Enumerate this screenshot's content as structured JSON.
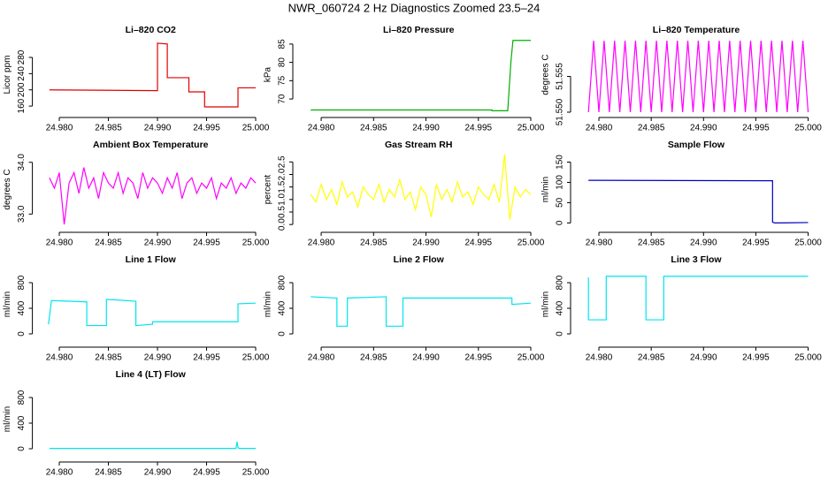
{
  "title": "NWR_060724  2 Hz Diagnostics Zoomed 23.5–24",
  "chart_data": [
    {
      "type": "line",
      "title": "Li–820 CO2",
      "ylabel": "Licor ppm",
      "color": "#e00000",
      "x": [
        24.979,
        24.99,
        24.99,
        24.991,
        24.991,
        24.9932,
        24.9932,
        24.9948,
        24.9948,
        24.9982,
        24.9982,
        25
      ],
      "values": [
        200,
        198,
        315,
        313,
        230,
        230,
        195,
        195,
        158,
        158,
        205,
        205
      ],
      "xlim": [
        24.9778,
        25.0008
      ],
      "xticks": [
        {
          "value": 24.98,
          "label": "24.980"
        },
        {
          "value": 24.985,
          "label": "24.985"
        },
        {
          "value": 24.99,
          "label": "24.990"
        },
        {
          "value": 24.995,
          "label": "24.995"
        },
        {
          "value": 25,
          "label": "25.000"
        }
      ],
      "ylim": [
        145,
        330
      ],
      "yticks": [
        160,
        200,
        240,
        280
      ]
    },
    {
      "type": "line",
      "title": "Li–820 Pressure",
      "ylabel": "kPa",
      "color": "#00b000",
      "x": [
        24.979,
        24.9963,
        24.9963,
        24.9978,
        24.9981,
        24.9983,
        25
      ],
      "values": [
        67,
        67,
        66.8,
        66.8,
        80,
        86,
        86
      ],
      "xlim": [
        24.9778,
        25.0008
      ],
      "xticks": [
        {
          "value": 24.98,
          "label": "24.980"
        },
        {
          "value": 24.985,
          "label": "24.985"
        },
        {
          "value": 24.99,
          "label": "24.990"
        },
        {
          "value": 24.995,
          "label": "24.995"
        },
        {
          "value": 25,
          "label": "25.000"
        }
      ],
      "ylim": [
        66.4,
        86.9
      ],
      "yticks": [
        70,
        75,
        80,
        85
      ]
    },
    {
      "type": "line",
      "title": "Li–820 Temperature",
      "ylabel": "degrees C",
      "color": "#ff00ff",
      "x": [
        24.979,
        24.9795,
        24.98,
        24.9805,
        24.981,
        24.9815,
        24.982,
        24.9825,
        24.983,
        24.9835,
        24.984,
        24.9845,
        24.985,
        24.9855,
        24.986,
        24.9865,
        24.987,
        24.9875,
        24.988,
        24.9885,
        24.989,
        24.9895,
        24.99,
        24.9905,
        24.991,
        24.9915,
        24.992,
        24.9925,
        24.993,
        24.9935,
        24.994,
        24.9945,
        24.995,
        24.9955,
        24.996,
        24.9965,
        24.997,
        24.9975,
        24.998,
        24.9985,
        24.999,
        24.9995,
        25
      ],
      "values": [
        51.55,
        51.56,
        51.55,
        51.56,
        51.55,
        51.56,
        51.55,
        51.56,
        51.55,
        51.56,
        51.55,
        51.56,
        51.55,
        51.56,
        51.55,
        51.56,
        51.55,
        51.56,
        51.55,
        51.56,
        51.55,
        51.56,
        51.55,
        51.56,
        51.55,
        51.56,
        51.55,
        51.56,
        51.55,
        51.56,
        51.55,
        51.56,
        51.55,
        51.56,
        51.55,
        51.56,
        51.55,
        51.56,
        51.55,
        51.56,
        51.55,
        51.56,
        51.55
      ],
      "xlim": [
        24.9778,
        25.0008
      ],
      "xticks": [
        {
          "value": 24.98,
          "label": "24.980"
        },
        {
          "value": 24.985,
          "label": "24.985"
        },
        {
          "value": 24.99,
          "label": "24.990"
        },
        {
          "value": 24.995,
          "label": "24.995"
        },
        {
          "value": 25,
          "label": "25.000"
        }
      ],
      "ylim": [
        51.55,
        51.5605
      ],
      "yticks": [
        {
          "value": 51.55,
          "label": "51.550"
        },
        {
          "value": 51.555,
          "label": "51.555"
        }
      ]
    },
    {
      "type": "line",
      "title": "Ambient Box Temperature",
      "ylabel": "degrees C",
      "color": "#ff00ff",
      "x": [
        24.979,
        24.9795,
        24.98,
        24.9805,
        24.981,
        24.9815,
        24.982,
        24.9825,
        24.983,
        24.9835,
        24.984,
        24.9845,
        24.985,
        24.9855,
        24.986,
        24.9865,
        24.987,
        24.9875,
        24.988,
        24.9885,
        24.989,
        24.9895,
        24.99,
        24.9905,
        24.991,
        24.9915,
        24.992,
        24.9925,
        24.993,
        24.9935,
        24.994,
        24.9945,
        24.995,
        24.9955,
        24.996,
        24.9965,
        24.997,
        24.9975,
        24.998,
        24.9985,
        24.999,
        24.9995,
        25
      ],
      "values": [
        33.7,
        33.5,
        33.8,
        32.8,
        33.6,
        33.8,
        33.4,
        33.9,
        33.5,
        33.7,
        33.3,
        33.8,
        33.6,
        33.5,
        33.8,
        33.4,
        33.7,
        33.6,
        33.3,
        33.8,
        33.5,
        33.7,
        33.6,
        33.4,
        33.7,
        33.5,
        33.8,
        33.3,
        33.6,
        33.7,
        33.4,
        33.6,
        33.5,
        33.7,
        33.3,
        33.6,
        33.5,
        33.7,
        33.4,
        33.6,
        33.5,
        33.7,
        33.6
      ],
      "xlim": [
        24.9778,
        25.0008
      ],
      "xticks": [
        {
          "value": 24.98,
          "label": "24.980"
        },
        {
          "value": 24.985,
          "label": "24.985"
        },
        {
          "value": 24.99,
          "label": "24.990"
        },
        {
          "value": 24.995,
          "label": "24.995"
        },
        {
          "value": 25,
          "label": "25.000"
        }
      ],
      "ylim": [
        32.75,
        34.2
      ],
      "yticks": [
        {
          "value": 33,
          "label": "33.0"
        },
        {
          "value": 34,
          "label": "34.0"
        }
      ]
    },
    {
      "type": "line",
      "title": "Gas Stream RH",
      "ylabel": "percent",
      "color": "#ffff00",
      "x": [
        24.979,
        24.9795,
        24.98,
        24.9805,
        24.981,
        24.9815,
        24.982,
        24.9825,
        24.983,
        24.9835,
        24.984,
        24.9845,
        24.985,
        24.9855,
        24.986,
        24.9865,
        24.987,
        24.9875,
        24.988,
        24.9885,
        24.989,
        24.9895,
        24.99,
        24.9905,
        24.991,
        24.9915,
        24.992,
        24.9925,
        24.993,
        24.9935,
        24.994,
        24.9945,
        24.995,
        24.9955,
        24.996,
        24.9965,
        24.997,
        24.9975,
        24.998,
        24.9985,
        24.999,
        24.9995,
        25
      ],
      "values": [
        1.2,
        0.9,
        1.6,
        1.0,
        1.4,
        0.8,
        1.7,
        1.1,
        1.3,
        0.7,
        1.5,
        1.2,
        1.0,
        1.6,
        0.9,
        1.4,
        1.1,
        1.8,
        1.0,
        1.3,
        0.6,
        1.5,
        1.2,
        0.3,
        1.6,
        1.0,
        1.4,
        0.9,
        1.7,
        1.1,
        1.3,
        0.8,
        1.5,
        1.2,
        1.0,
        1.6,
        0.9,
        2.8,
        0.2,
        1.5,
        1.1,
        1.4,
        1.2
      ],
      "xlim": [
        24.9778,
        25.0008
      ],
      "xticks": [
        {
          "value": 24.98,
          "label": "24.980"
        },
        {
          "value": 24.985,
          "label": "24.985"
        },
        {
          "value": 24.99,
          "label": "24.990"
        },
        {
          "value": 24.995,
          "label": "24.995"
        },
        {
          "value": 25,
          "label": "25.000"
        }
      ],
      "ylim": [
        -0.1,
        2.9
      ],
      "yticks": [
        {
          "value": 0,
          "label": "0.0"
        },
        {
          "value": 0.5,
          "label": "0.5"
        },
        {
          "value": 1,
          "label": "1.0"
        },
        {
          "value": 1.5,
          "label": "1.5"
        },
        {
          "value": 2,
          "label": "2.0"
        },
        {
          "value": 2.5,
          "label": "2.5"
        }
      ]
    },
    {
      "type": "line",
      "title": "Sample Flow",
      "ylabel": "ml/min",
      "color": "#0000c0",
      "x": [
        24.979,
        24.9966,
        24.9966,
        24.9968,
        25
      ],
      "values": [
        105,
        104,
        2,
        0,
        1
      ],
      "xlim": [
        24.9778,
        25.0008
      ],
      "xticks": [
        {
          "value": 24.98,
          "label": "24.980"
        },
        {
          "value": 24.985,
          "label": "24.985"
        },
        {
          "value": 24.99,
          "label": "24.990"
        },
        {
          "value": 24.995,
          "label": "24.995"
        },
        {
          "value": 25,
          "label": "25.000"
        }
      ],
      "ylim": [
        -10,
        175
      ],
      "yticks": [
        0,
        50,
        100,
        150
      ]
    },
    {
      "type": "line",
      "title": "Line 1 Flow",
      "ylabel": "ml/min",
      "color": "#00e5ee",
      "x": [
        24.9789,
        24.9792,
        24.9828,
        24.9828,
        24.9848,
        24.9848,
        24.9878,
        24.9878,
        24.9895,
        24.9895,
        24.9982,
        24.9982,
        25
      ],
      "values": [
        150,
        520,
        500,
        130,
        130,
        540,
        510,
        130,
        150,
        190,
        190,
        470,
        480
      ],
      "xlim": [
        24.9778,
        25.0008
      ],
      "xticks": [
        {
          "value": 24.98,
          "label": "24.980"
        },
        {
          "value": 24.985,
          "label": "24.985"
        },
        {
          "value": 24.99,
          "label": "24.990"
        },
        {
          "value": 24.995,
          "label": "24.995"
        },
        {
          "value": 25,
          "label": "25.000"
        }
      ],
      "ylim": [
        -124,
        1048
      ],
      "yticks": [
        0,
        400,
        800
      ]
    },
    {
      "type": "line",
      "title": "Line 2 Flow",
      "ylabel": "ml/min",
      "color": "#00e5ee",
      "x": [
        24.979,
        24.9815,
        24.9815,
        24.9825,
        24.9825,
        24.9862,
        24.9862,
        24.9878,
        24.9878,
        24.9982,
        24.9982,
        25
      ],
      "values": [
        580,
        560,
        120,
        120,
        560,
        580,
        120,
        120,
        560,
        560,
        460,
        480
      ],
      "xlim": [
        24.9778,
        25.0008
      ],
      "xticks": [
        {
          "value": 24.98,
          "label": "24.980"
        },
        {
          "value": 24.985,
          "label": "24.985"
        },
        {
          "value": 24.99,
          "label": "24.990"
        },
        {
          "value": 24.995,
          "label": "24.995"
        },
        {
          "value": 25,
          "label": "25.000"
        }
      ],
      "ylim": [
        -124,
        1048
      ],
      "yticks": [
        0,
        400,
        800
      ]
    },
    {
      "type": "line",
      "title": "Line 3 Flow",
      "ylabel": "ml/min",
      "color": "#00e5ee",
      "x": [
        24.979,
        24.979,
        24.9807,
        24.9807,
        24.9845,
        24.9845,
        24.9862,
        24.9862,
        25
      ],
      "values": [
        880,
        220,
        220,
        900,
        900,
        220,
        220,
        900,
        900
      ],
      "xlim": [
        24.9778,
        25.0008
      ],
      "xticks": [
        {
          "value": 24.98,
          "label": "24.980"
        },
        {
          "value": 24.985,
          "label": "24.985"
        },
        {
          "value": 24.99,
          "label": "24.990"
        },
        {
          "value": 24.995,
          "label": "24.995"
        },
        {
          "value": 25,
          "label": "25.000"
        }
      ],
      "ylim": [
        -124,
        1048
      ],
      "yticks": [
        0,
        400,
        800
      ]
    },
    {
      "type": "line",
      "title": "Line 4 (LT) Flow",
      "ylabel": "ml/min",
      "color": "#00e5ee",
      "x": [
        24.979,
        24.998,
        24.9981,
        24.9982,
        24.9983,
        25
      ],
      "values": [
        5,
        5,
        110,
        20,
        5,
        5
      ],
      "xlim": [
        24.9778,
        25.0008
      ],
      "xticks": [
        {
          "value": 24.98,
          "label": "24.980"
        },
        {
          "value": 24.985,
          "label": "24.985"
        },
        {
          "value": 24.99,
          "label": "24.990"
        },
        {
          "value": 24.995,
          "label": "24.995"
        },
        {
          "value": 25,
          "label": "25.000"
        }
      ],
      "ylim": [
        -124,
        1048
      ],
      "yticks": [
        0,
        400,
        800
      ]
    }
  ]
}
